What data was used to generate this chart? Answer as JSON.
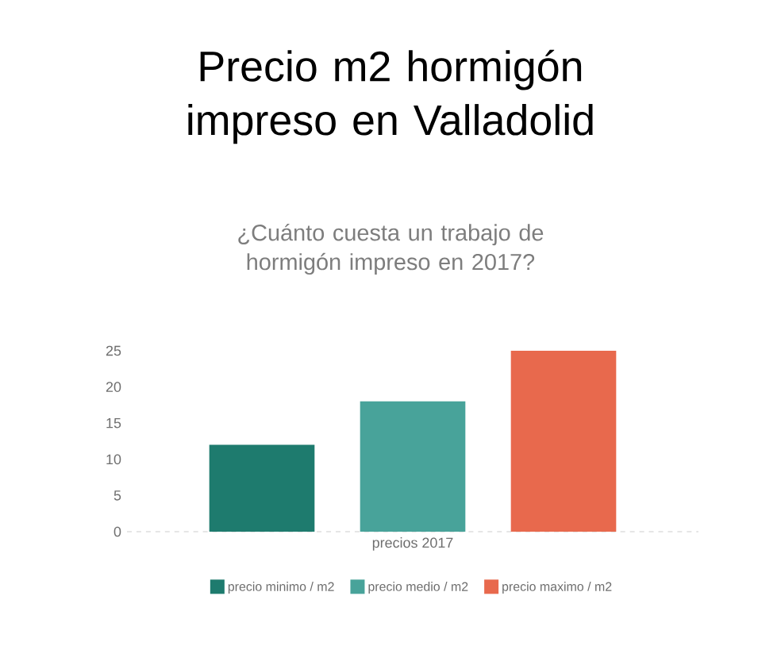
{
  "chart_data": {
    "type": "bar",
    "title": "Precio m2 hormigón impreso en Valladolid",
    "subtitle": "¿Cuánto cuesta un trabajo de hormigón impreso en 2017?",
    "categories": [
      "precios 2017"
    ],
    "series": [
      {
        "name": "precio minimo / m2",
        "color": "#1e7b6e",
        "values": [
          12
        ]
      },
      {
        "name": "precio medio / m2",
        "color": "#48a39a",
        "values": [
          18
        ]
      },
      {
        "name": "precio maximo / m2",
        "color": "#e8694d",
        "values": [
          25
        ]
      }
    ],
    "ylim": [
      0,
      25
    ],
    "yticks": [
      0,
      5,
      10,
      15,
      20,
      25
    ],
    "legend": "bottom"
  }
}
